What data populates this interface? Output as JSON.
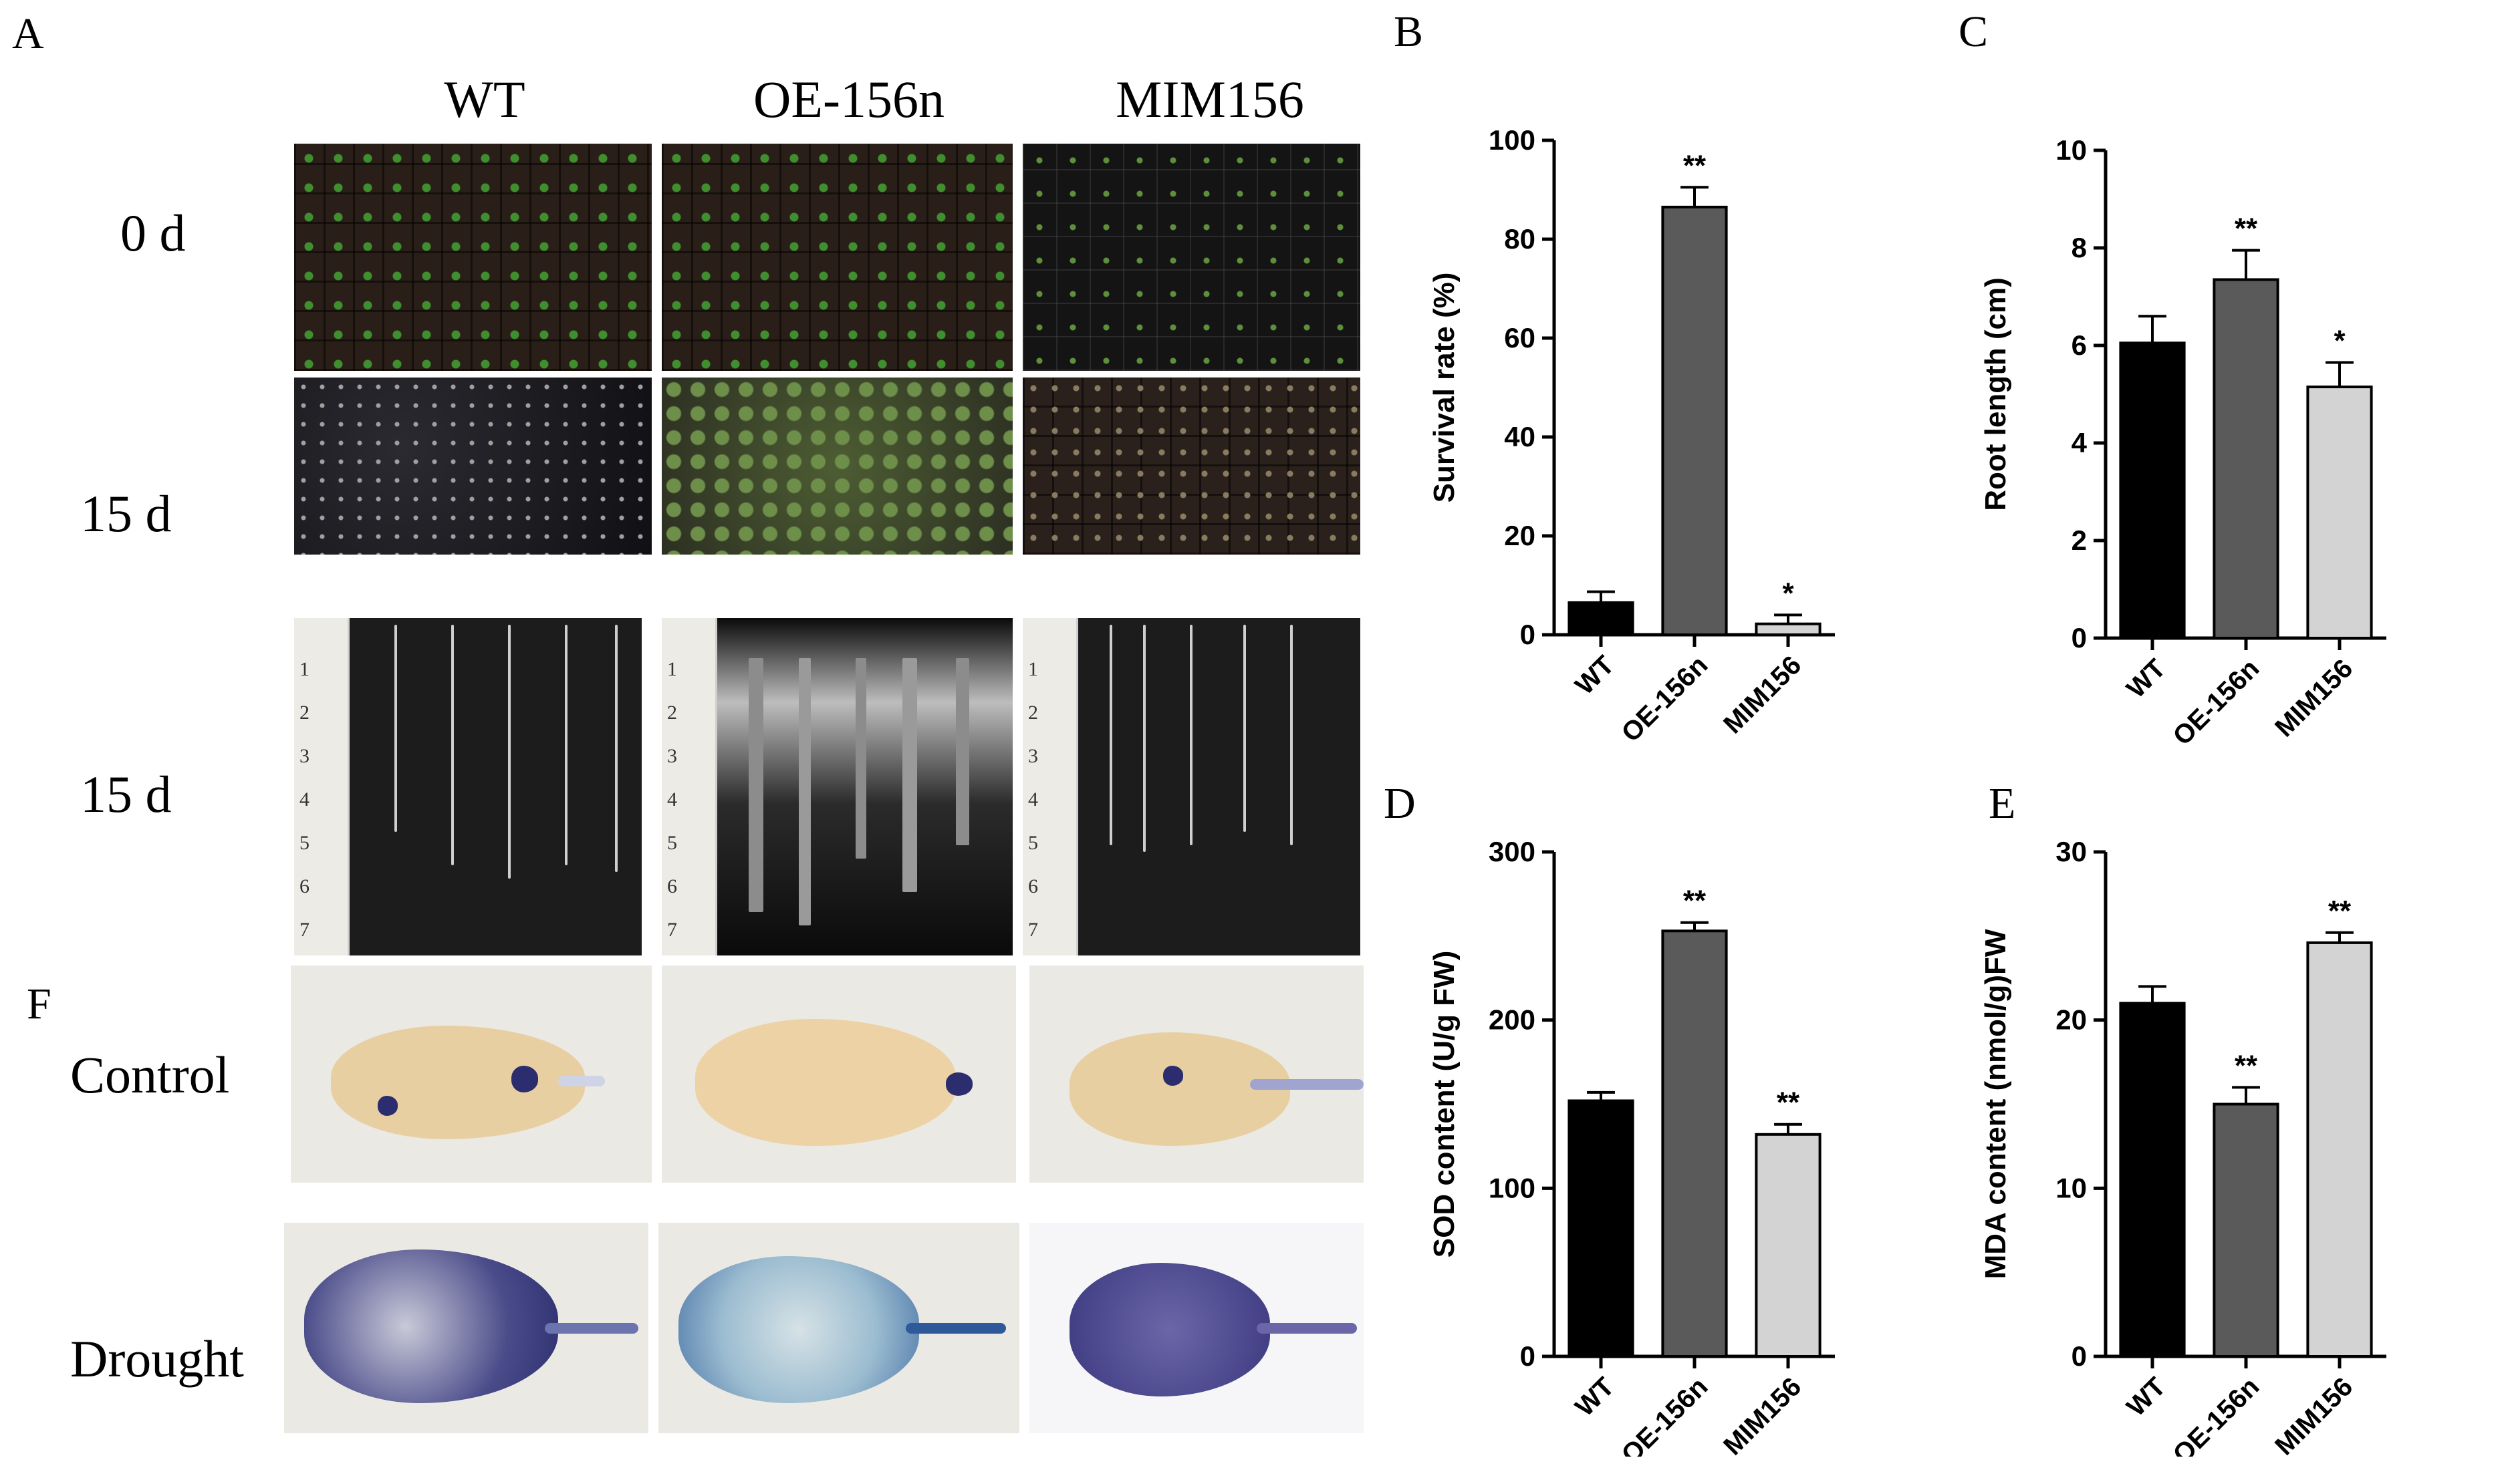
{
  "panel_a": {
    "letter": "A",
    "columns": [
      "WT",
      "OE-156n",
      "MIM156"
    ],
    "rows": [
      "0 d",
      "15 d",
      "15 d"
    ],
    "ruler_numbers": [
      "1",
      "2",
      "3",
      "4",
      "5",
      "6",
      "7"
    ]
  },
  "panel_f": {
    "letter": "F",
    "rows": [
      "Control",
      "Drought"
    ]
  },
  "chart_data": [
    {
      "panel": "B",
      "type": "bar",
      "categories": [
        "WT",
        "OE-156n",
        "MIM156"
      ],
      "values": [
        6.5,
        86.5,
        2.2
      ],
      "errors": [
        2.2,
        4.0,
        1.8
      ],
      "significance": [
        "",
        "**",
        "*"
      ],
      "ylabel": "Survival rate  (%)",
      "ylim": [
        0,
        100
      ],
      "yticks": [
        0,
        20,
        40,
        60,
        80,
        100
      ],
      "colors": [
        "#000000",
        "#5a5a5a",
        "#d3d3d3"
      ]
    },
    {
      "panel": "C",
      "type": "bar",
      "categories": [
        "WT",
        "OE-156n",
        "MIM156"
      ],
      "values": [
        6.05,
        7.35,
        5.15
      ],
      "errors": [
        0.55,
        0.6,
        0.5
      ],
      "significance": [
        "",
        "**",
        "*"
      ],
      "ylabel": "Root length  (cm)",
      "ylim": [
        0,
        10
      ],
      "yticks": [
        0,
        2,
        4,
        6,
        8,
        10
      ],
      "colors": [
        "#000000",
        "#5a5a5a",
        "#d3d3d3"
      ]
    },
    {
      "panel": "D",
      "type": "bar",
      "categories": [
        "WT",
        "OE-156n",
        "MIM156"
      ],
      "values": [
        152,
        253,
        132
      ],
      "errors": [
        5,
        5,
        6
      ],
      "significance": [
        "",
        "**",
        "**"
      ],
      "ylabel": "SOD content  (U/g FW)",
      "ylim": [
        0,
        300
      ],
      "yticks": [
        0,
        100,
        200,
        300
      ],
      "colors": [
        "#000000",
        "#5a5a5a",
        "#d3d3d3"
      ]
    },
    {
      "panel": "E",
      "type": "bar",
      "categories": [
        "WT",
        "OE-156n",
        "MIM156"
      ],
      "values": [
        21.0,
        15.0,
        24.6
      ],
      "errors": [
        1.0,
        1.0,
        0.6
      ],
      "significance": [
        "",
        "**",
        "**"
      ],
      "ylabel": "MDA content  (nmol/g)FW",
      "ylim": [
        0,
        30
      ],
      "yticks": [
        0,
        10,
        20,
        30
      ],
      "colors": [
        "#000000",
        "#5a5a5a",
        "#d3d3d3"
      ]
    }
  ]
}
